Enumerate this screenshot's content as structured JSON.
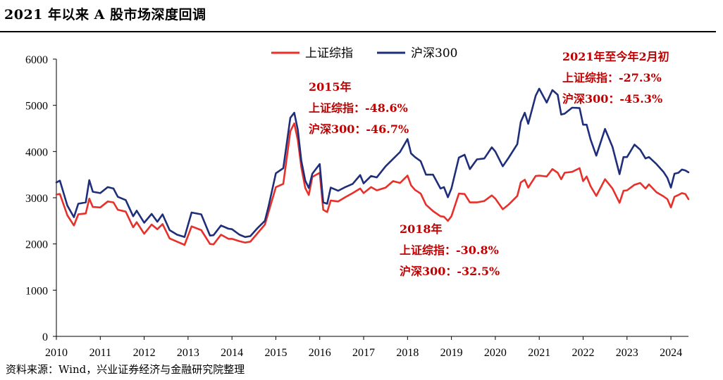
{
  "header": {
    "title": "2021 年以来 A 股市场深度回调"
  },
  "footer": {
    "source": "资料来源：Wind，兴业证券经济与金融研究院整理"
  },
  "colors": {
    "sse": "#e8302a",
    "csi300": "#1f2e7a",
    "annotation": "#c00000"
  },
  "chart_data": {
    "type": "line",
    "title": "2021 年以来 A 股市场深度回调",
    "xlabel": "",
    "ylabel": "",
    "ylim": [
      0,
      6000
    ],
    "yticks": [
      0,
      1000,
      2000,
      3000,
      4000,
      5000,
      6000
    ],
    "xlim": [
      2010.0,
      2024.4
    ],
    "xticks": [
      "2010",
      "2011",
      "2012",
      "2013",
      "2014",
      "2015",
      "2016",
      "2017",
      "2018",
      "2019",
      "2020",
      "2021",
      "2022",
      "2023",
      "2024"
    ],
    "grid": false,
    "legend_position": "top-center",
    "series": [
      {
        "name": "上证综指",
        "color": "#e8302a",
        "points": [
          [
            2010.0,
            3070
          ],
          [
            2010.08,
            3080
          ],
          [
            2010.25,
            2620
          ],
          [
            2010.4,
            2400
          ],
          [
            2010.5,
            2640
          ],
          [
            2010.67,
            2660
          ],
          [
            2010.75,
            2980
          ],
          [
            2010.83,
            2800
          ],
          [
            2011.0,
            2790
          ],
          [
            2011.17,
            2920
          ],
          [
            2011.3,
            2900
          ],
          [
            2011.4,
            2740
          ],
          [
            2011.58,
            2700
          ],
          [
            2011.75,
            2360
          ],
          [
            2011.83,
            2470
          ],
          [
            2012.0,
            2220
          ],
          [
            2012.17,
            2420
          ],
          [
            2012.3,
            2320
          ],
          [
            2012.42,
            2430
          ],
          [
            2012.58,
            2120
          ],
          [
            2012.75,
            2050
          ],
          [
            2012.92,
            1980
          ],
          [
            2013.08,
            2380
          ],
          [
            2013.3,
            2300
          ],
          [
            2013.5,
            2000
          ],
          [
            2013.58,
            1990
          ],
          [
            2013.75,
            2200
          ],
          [
            2013.92,
            2110
          ],
          [
            2014.0,
            2110
          ],
          [
            2014.17,
            2060
          ],
          [
            2014.3,
            2030
          ],
          [
            2014.42,
            2050
          ],
          [
            2014.58,
            2230
          ],
          [
            2014.75,
            2420
          ],
          [
            2014.83,
            2680
          ],
          [
            2015.0,
            3230
          ],
          [
            2015.17,
            3300
          ],
          [
            2015.33,
            4440
          ],
          [
            2015.42,
            4610
          ],
          [
            2015.5,
            4250
          ],
          [
            2015.58,
            3660
          ],
          [
            2015.67,
            3210
          ],
          [
            2015.75,
            3060
          ],
          [
            2015.83,
            3450
          ],
          [
            2016.0,
            3540
          ],
          [
            2016.08,
            2740
          ],
          [
            2016.17,
            2690
          ],
          [
            2016.25,
            2940
          ],
          [
            2016.42,
            2920
          ],
          [
            2016.58,
            3010
          ],
          [
            2016.75,
            3100
          ],
          [
            2016.92,
            3200
          ],
          [
            2017.0,
            3100
          ],
          [
            2017.17,
            3230
          ],
          [
            2017.3,
            3160
          ],
          [
            2017.5,
            3220
          ],
          [
            2017.67,
            3360
          ],
          [
            2017.83,
            3320
          ],
          [
            2018.0,
            3480
          ],
          [
            2018.08,
            3270
          ],
          [
            2018.17,
            3170
          ],
          [
            2018.3,
            3090
          ],
          [
            2018.42,
            2850
          ],
          [
            2018.58,
            2710
          ],
          [
            2018.75,
            2600
          ],
          [
            2018.83,
            2590
          ],
          [
            2018.92,
            2500
          ],
          [
            2019.0,
            2600
          ],
          [
            2019.17,
            3090
          ],
          [
            2019.3,
            3080
          ],
          [
            2019.42,
            2900
          ],
          [
            2019.58,
            2900
          ],
          [
            2019.75,
            2930
          ],
          [
            2019.92,
            3050
          ],
          [
            2020.0,
            2980
          ],
          [
            2020.17,
            2750
          ],
          [
            2020.3,
            2850
          ],
          [
            2020.5,
            3040
          ],
          [
            2020.58,
            3330
          ],
          [
            2020.67,
            3390
          ],
          [
            2020.75,
            3220
          ],
          [
            2020.92,
            3470
          ],
          [
            2021.0,
            3480
          ],
          [
            2021.17,
            3460
          ],
          [
            2021.3,
            3620
          ],
          [
            2021.42,
            3540
          ],
          [
            2021.5,
            3400
          ],
          [
            2021.58,
            3540
          ],
          [
            2021.75,
            3560
          ],
          [
            2021.92,
            3640
          ],
          [
            2022.0,
            3360
          ],
          [
            2022.08,
            3460
          ],
          [
            2022.17,
            3250
          ],
          [
            2022.3,
            3040
          ],
          [
            2022.5,
            3400
          ],
          [
            2022.67,
            3200
          ],
          [
            2022.83,
            2890
          ],
          [
            2022.92,
            3150
          ],
          [
            2023.0,
            3160
          ],
          [
            2023.17,
            3280
          ],
          [
            2023.3,
            3320
          ],
          [
            2023.42,
            3200
          ],
          [
            2023.5,
            3290
          ],
          [
            2023.67,
            3120
          ],
          [
            2023.83,
            3030
          ],
          [
            2023.92,
            2970
          ],
          [
            2024.0,
            2790
          ],
          [
            2024.08,
            3020
          ],
          [
            2024.17,
            3060
          ],
          [
            2024.25,
            3100
          ],
          [
            2024.33,
            3080
          ],
          [
            2024.4,
            2970
          ]
        ]
      },
      {
        "name": "沪深300",
        "color": "#1f2e7a",
        "points": [
          [
            2010.0,
            3330
          ],
          [
            2010.08,
            3370
          ],
          [
            2010.25,
            2830
          ],
          [
            2010.4,
            2580
          ],
          [
            2010.5,
            2870
          ],
          [
            2010.67,
            2900
          ],
          [
            2010.75,
            3380
          ],
          [
            2010.83,
            3130
          ],
          [
            2011.0,
            3100
          ],
          [
            2011.17,
            3230
          ],
          [
            2011.3,
            3200
          ],
          [
            2011.4,
            3020
          ],
          [
            2011.58,
            2950
          ],
          [
            2011.75,
            2600
          ],
          [
            2011.83,
            2720
          ],
          [
            2012.0,
            2460
          ],
          [
            2012.17,
            2650
          ],
          [
            2012.3,
            2480
          ],
          [
            2012.42,
            2640
          ],
          [
            2012.58,
            2300
          ],
          [
            2012.75,
            2200
          ],
          [
            2012.92,
            2150
          ],
          [
            2013.08,
            2680
          ],
          [
            2013.3,
            2640
          ],
          [
            2013.5,
            2180
          ],
          [
            2013.58,
            2190
          ],
          [
            2013.75,
            2400
          ],
          [
            2013.92,
            2330
          ],
          [
            2014.0,
            2320
          ],
          [
            2014.17,
            2200
          ],
          [
            2014.3,
            2150
          ],
          [
            2014.42,
            2170
          ],
          [
            2014.58,
            2340
          ],
          [
            2014.75,
            2500
          ],
          [
            2014.83,
            2800
          ],
          [
            2015.0,
            3530
          ],
          [
            2015.17,
            3640
          ],
          [
            2015.33,
            4730
          ],
          [
            2015.42,
            4840
          ],
          [
            2015.5,
            4470
          ],
          [
            2015.58,
            3800
          ],
          [
            2015.67,
            3370
          ],
          [
            2015.75,
            3210
          ],
          [
            2015.83,
            3520
          ],
          [
            2016.0,
            3730
          ],
          [
            2016.08,
            2900
          ],
          [
            2016.17,
            2870
          ],
          [
            2016.25,
            3220
          ],
          [
            2016.42,
            3150
          ],
          [
            2016.58,
            3230
          ],
          [
            2016.75,
            3300
          ],
          [
            2016.92,
            3490
          ],
          [
            2017.0,
            3310
          ],
          [
            2017.17,
            3470
          ],
          [
            2017.3,
            3440
          ],
          [
            2017.5,
            3680
          ],
          [
            2017.67,
            3840
          ],
          [
            2017.83,
            3990
          ],
          [
            2018.0,
            4270
          ],
          [
            2018.08,
            3960
          ],
          [
            2018.17,
            3880
          ],
          [
            2018.3,
            3790
          ],
          [
            2018.42,
            3500
          ],
          [
            2018.58,
            3500
          ],
          [
            2018.75,
            3200
          ],
          [
            2018.83,
            3230
          ],
          [
            2018.92,
            3010
          ],
          [
            2019.0,
            3200
          ],
          [
            2019.17,
            3870
          ],
          [
            2019.3,
            3930
          ],
          [
            2019.42,
            3620
          ],
          [
            2019.58,
            3830
          ],
          [
            2019.75,
            3850
          ],
          [
            2019.92,
            4090
          ],
          [
            2020.0,
            4000
          ],
          [
            2020.17,
            3680
          ],
          [
            2020.3,
            3860
          ],
          [
            2020.5,
            4160
          ],
          [
            2020.58,
            4640
          ],
          [
            2020.67,
            4840
          ],
          [
            2020.75,
            4600
          ],
          [
            2020.92,
            5210
          ],
          [
            2021.0,
            5360
          ],
          [
            2021.17,
            5060
          ],
          [
            2021.3,
            5330
          ],
          [
            2021.42,
            5230
          ],
          [
            2021.5,
            4800
          ],
          [
            2021.58,
            4820
          ],
          [
            2021.75,
            4950
          ],
          [
            2021.92,
            4940
          ],
          [
            2022.0,
            4580
          ],
          [
            2022.08,
            4580
          ],
          [
            2022.17,
            4260
          ],
          [
            2022.3,
            3910
          ],
          [
            2022.5,
            4490
          ],
          [
            2022.67,
            4100
          ],
          [
            2022.83,
            3510
          ],
          [
            2022.92,
            3880
          ],
          [
            2023.0,
            3880
          ],
          [
            2023.17,
            4150
          ],
          [
            2023.3,
            4040
          ],
          [
            2023.42,
            3850
          ],
          [
            2023.5,
            3880
          ],
          [
            2023.67,
            3730
          ],
          [
            2023.83,
            3560
          ],
          [
            2023.92,
            3430
          ],
          [
            2024.0,
            3220
          ],
          [
            2024.08,
            3520
          ],
          [
            2024.17,
            3540
          ],
          [
            2024.25,
            3610
          ],
          [
            2024.33,
            3590
          ],
          [
            2024.4,
            3550
          ]
        ]
      }
    ],
    "annotations": [
      {
        "lines": [
          "2015年",
          "上证综指：-48.6%",
          "沪深300：-46.7%"
        ]
      },
      {
        "lines": [
          "2018年",
          "上证综指：-30.8%",
          "沪深300：-32.5%"
        ]
      },
      {
        "lines": [
          "2021年至今年2月初",
          "上证综指：-27.3%",
          "沪深300：-45.3%"
        ]
      }
    ]
  }
}
